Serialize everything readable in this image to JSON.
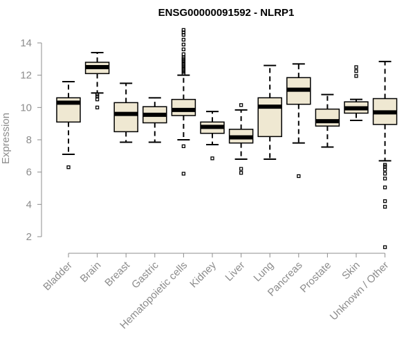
{
  "chart_data": {
    "type": "boxplot",
    "title": "ENSG00000091592 - NLRP1",
    "xlabel": "",
    "ylabel": "Expression",
    "ylim": [
      1,
      15
    ],
    "yticks": [
      2,
      4,
      6,
      8,
      10,
      12,
      14
    ],
    "categories": [
      "Bladder",
      "Brain",
      "Breast",
      "Gastric",
      "Hematopoietic cells",
      "Kidney",
      "Liver",
      "Lung",
      "Pancreas",
      "Prostate",
      "Skin",
      "Unknown / Other"
    ],
    "boxes": [
      {
        "name": "Bladder",
        "whisker_low": 7.1,
        "q1": 9.1,
        "median": 10.3,
        "q3": 10.6,
        "whisker_high": 11.6,
        "outliers": [
          6.3
        ]
      },
      {
        "name": "Brain",
        "whisker_low": 10.9,
        "q1": 12.1,
        "median": 12.5,
        "q3": 12.8,
        "whisker_high": 13.4,
        "outliers": [
          10.0,
          10.5,
          10.7,
          10.8
        ]
      },
      {
        "name": "Breast",
        "whisker_low": 7.85,
        "q1": 8.5,
        "median": 9.6,
        "q3": 10.3,
        "whisker_high": 11.5,
        "outliers": []
      },
      {
        "name": "Gastric",
        "whisker_low": 7.85,
        "q1": 9.05,
        "median": 9.55,
        "q3": 10.05,
        "whisker_high": 10.6,
        "outliers": []
      },
      {
        "name": "Hematopoietic cells",
        "whisker_low": 8.0,
        "q1": 9.5,
        "median": 9.85,
        "q3": 10.5,
        "whisker_high": 12.0,
        "outliers": [
          5.9,
          7.6,
          12.1,
          12.2,
          12.3,
          12.4,
          12.5,
          12.6,
          12.7,
          12.8,
          12.9,
          13.0,
          13.1,
          13.3,
          13.6,
          13.9,
          14.2,
          14.5,
          14.65,
          14.8
        ]
      },
      {
        "name": "Kidney",
        "whisker_low": 7.7,
        "q1": 8.4,
        "median": 8.8,
        "q3": 9.1,
        "whisker_high": 9.75,
        "outliers": [
          6.85
        ]
      },
      {
        "name": "Liver",
        "whisker_low": 6.8,
        "q1": 7.8,
        "median": 8.15,
        "q3": 8.65,
        "whisker_high": 9.85,
        "outliers": [
          5.95,
          6.2,
          10.15
        ]
      },
      {
        "name": "Lung",
        "whisker_low": 6.8,
        "q1": 8.2,
        "median": 10.05,
        "q3": 10.6,
        "whisker_high": 12.6,
        "outliers": []
      },
      {
        "name": "Pancreas",
        "whisker_low": 7.8,
        "q1": 10.2,
        "median": 11.1,
        "q3": 11.85,
        "whisker_high": 12.7,
        "outliers": [
          5.75
        ]
      },
      {
        "name": "Prostate",
        "whisker_low": 7.55,
        "q1": 8.85,
        "median": 9.15,
        "q3": 9.9,
        "whisker_high": 10.8,
        "outliers": []
      },
      {
        "name": "Skin",
        "whisker_low": 9.2,
        "q1": 9.65,
        "median": 9.95,
        "q3": 10.35,
        "whisker_high": 10.5,
        "outliers": [
          11.95,
          12.25,
          12.5
        ]
      },
      {
        "name": "Unknown / Other",
        "whisker_low": 6.7,
        "q1": 8.95,
        "median": 9.7,
        "q3": 10.55,
        "whisker_high": 12.85,
        "outliers": [
          1.35,
          3.85,
          4.2,
          5.05,
          5.6,
          5.9,
          6.15,
          6.35,
          6.45
        ]
      }
    ]
  }
}
